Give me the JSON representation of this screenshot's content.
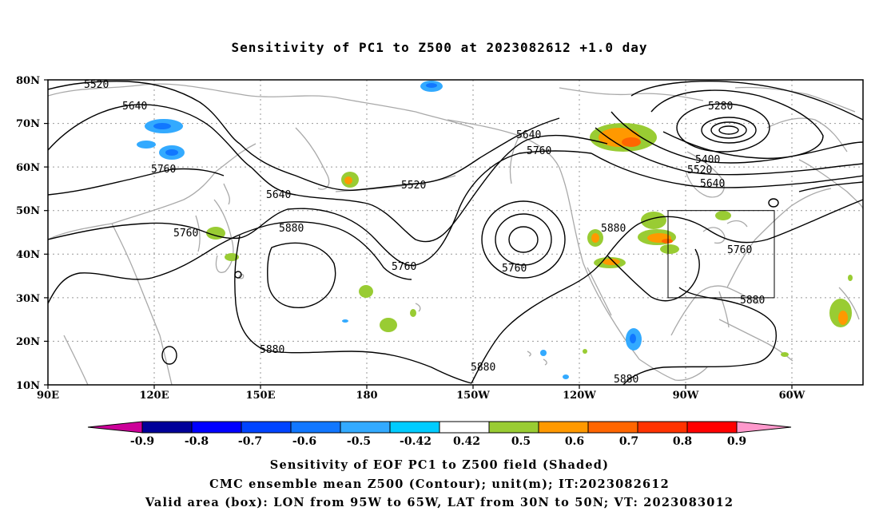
{
  "title": "Sensitivity of PC1 to Z500 at 2023082612 +1.0 day",
  "captions": [
    "Sensitivity of EOF PC1 to Z500 field (Shaded)",
    "CMC ensemble mean Z500 (Contour); unit(m); IT:2023082612",
    "Valid area (box): LON from 95W to 65W, LAT from 30N to 50N; VT: 2023083012"
  ],
  "map": {
    "lon_range": [
      "90E",
      "47W"
    ],
    "lat_range": [
      "10N",
      "80N"
    ],
    "lat_ticks": [
      "80N",
      "70N",
      "60N",
      "50N",
      "40N",
      "30N",
      "20N",
      "10N"
    ],
    "lon_ticks": [
      "90E",
      "120E",
      "150E",
      "180",
      "150W",
      "120W",
      "90W",
      "60W"
    ],
    "grid": "dotted",
    "coastline_color": "#a9a9a9",
    "contour_color": "#000000",
    "valid_box": {
      "lon_from": "95W",
      "lon_to": "65W",
      "lat_from": "30N",
      "lat_to": "50N"
    }
  },
  "contour_labels": [
    "5520",
    "5640",
    "5760",
    "5640",
    "5760",
    "5880",
    "5520",
    "5640",
    "5760",
    "5760",
    "5760",
    "5880",
    "5880",
    "5880",
    "5880",
    "5280",
    "5400",
    "5520",
    "5640",
    "5760",
    "5880"
  ],
  "colorbar": {
    "labels": [
      "-0.9",
      "-0.8",
      "-0.7",
      "-0.6",
      "-0.5",
      "-0.42",
      "0.42",
      "0.5",
      "0.6",
      "0.7",
      "0.8",
      "0.9"
    ],
    "colors": [
      "#cc0099",
      "#000099",
      "#0000ff",
      "#0044ff",
      "#1177ff",
      "#33aaff",
      "#00ccff",
      "#ffffff",
      "#99cc33",
      "#ff9900",
      "#ff6600",
      "#ff3300",
      "#ff0000",
      "#ff99cc"
    ]
  }
}
